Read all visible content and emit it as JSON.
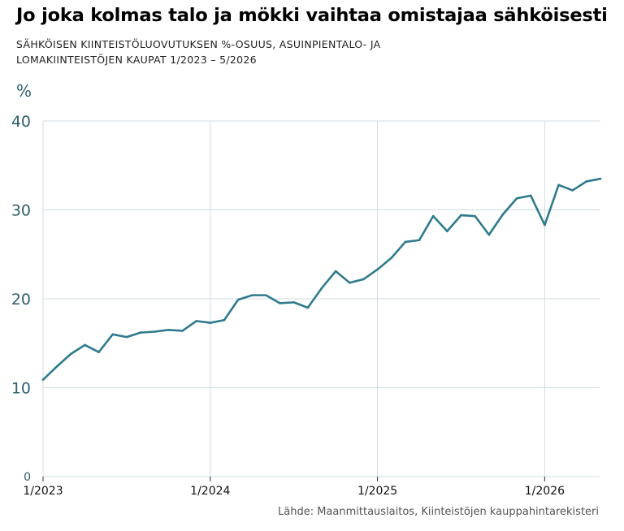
{
  "header": {
    "title": "Jo joka kolmas talo ja mökki vaihtaa omistajaa sähköisesti",
    "subtitle": "SÄHKÖISEN KIINTEISTÖLUOVUTUKSEN %-OSUUS, ASUINPIENTALO- JA LOMAKIINTEISTÖJEN KAUPAT 1/2023 – 5/2026",
    "unit": "%"
  },
  "source": "Lähde: Maanmittauslaitos, Kiinteistöjen kauppahintarekisteri",
  "colors": {
    "line": "#2f7a8c",
    "grid": "#cfdde4",
    "axis_text": "#2f5f6f"
  },
  "chart_data": {
    "type": "line",
    "ylim": [
      0,
      40
    ],
    "yticks": [
      "0",
      "10",
      "20",
      "30",
      "40"
    ],
    "xtick_labels": [
      "1/2023",
      "1/2024",
      "1/2025",
      "1/2026"
    ],
    "grid": true,
    "series": [
      {
        "x": [
          "1/2023",
          "2/2023",
          "3/2023",
          "4/2023",
          "5/2023",
          "6/2023",
          "7/2023",
          "8/2023",
          "9/2023",
          "10/2023",
          "11/2023",
          "12/2023",
          "1/2024",
          "2/2024",
          "3/2024",
          "4/2024",
          "5/2024",
          "6/2024",
          "7/2024",
          "8/2024",
          "9/2024",
          "10/2024",
          "11/2024",
          "12/2024",
          "1/2025",
          "2/2025",
          "3/2025",
          "4/2025",
          "5/2025",
          "6/2025",
          "7/2025",
          "8/2025",
          "9/2025",
          "10/2025",
          "11/2025",
          "12/2025",
          "1/2026",
          "2/2026",
          "3/2026",
          "4/2026",
          "5/2026"
        ],
        "values": [
          10.9,
          12.4,
          13.8,
          14.8,
          14.0,
          16.0,
          15.7,
          16.2,
          16.3,
          16.5,
          16.4,
          17.5,
          17.3,
          17.6,
          19.9,
          20.4,
          20.4,
          19.5,
          19.6,
          19.0,
          21.2,
          23.1,
          21.8,
          22.2,
          23.3,
          24.6,
          26.4,
          26.6,
          29.3,
          27.6,
          29.4,
          29.3,
          27.2,
          29.5,
          31.3,
          31.6,
          28.3,
          32.8,
          32.2,
          33.2,
          33.5
        ]
      }
    ]
  }
}
